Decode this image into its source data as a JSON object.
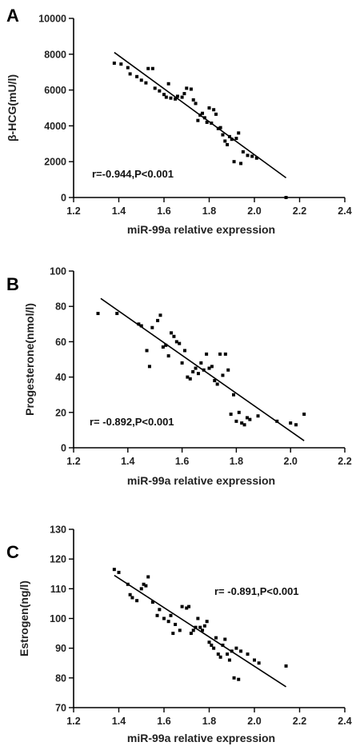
{
  "colors": {
    "points": "#000000",
    "axes": "#000000",
    "text": "#222222"
  },
  "chart_data": [
    {
      "type": "scatter",
      "panel": "A",
      "xlabel": "miR-99a relative expression",
      "ylabel": "β-HCG(mU/l)",
      "annotation": "r=-0.944,P<0.001",
      "xlim": [
        1.2,
        2.4
      ],
      "ylim": [
        0,
        10000
      ],
      "x_ticks": [
        1.2,
        1.4,
        1.6,
        1.8,
        2.0,
        2.2,
        2.4
      ],
      "x_tick_labels": [
        "1.2",
        "1.4",
        "1.6",
        "1.8",
        "2.0",
        "2.2",
        "2.4"
      ],
      "y_ticks": [
        0,
        2000,
        4000,
        6000,
        8000,
        10000
      ],
      "y_tick_labels": [
        "0",
        "2000",
        "4000",
        "6000",
        "8000",
        "10000"
      ],
      "grid": false,
      "fit_line": [
        [
          1.38,
          8100
        ],
        [
          2.14,
          1100
        ]
      ],
      "points": [
        [
          1.38,
          7500
        ],
        [
          1.41,
          7450
        ],
        [
          1.44,
          7250
        ],
        [
          1.45,
          6900
        ],
        [
          1.48,
          6750
        ],
        [
          1.5,
          6550
        ],
        [
          1.52,
          6400
        ],
        [
          1.53,
          7200
        ],
        [
          1.55,
          7200
        ],
        [
          1.56,
          6100
        ],
        [
          1.58,
          5950
        ],
        [
          1.6,
          5750
        ],
        [
          1.61,
          5600
        ],
        [
          1.62,
          6350
        ],
        [
          1.63,
          5550
        ],
        [
          1.65,
          5500
        ],
        [
          1.66,
          5650
        ],
        [
          1.68,
          5600
        ],
        [
          1.69,
          5800
        ],
        [
          1.7,
          6100
        ],
        [
          1.72,
          6050
        ],
        [
          1.73,
          5450
        ],
        [
          1.74,
          5250
        ],
        [
          1.75,
          4300
        ],
        [
          1.76,
          4600
        ],
        [
          1.77,
          4700
        ],
        [
          1.78,
          4450
        ],
        [
          1.79,
          4200
        ],
        [
          1.8,
          5000
        ],
        [
          1.81,
          4150
        ],
        [
          1.82,
          4900
        ],
        [
          1.83,
          4650
        ],
        [
          1.84,
          3850
        ],
        [
          1.85,
          3900
        ],
        [
          1.86,
          3500
        ],
        [
          1.87,
          3150
        ],
        [
          1.88,
          2950
        ],
        [
          1.89,
          3400
        ],
        [
          1.9,
          3250
        ],
        [
          1.91,
          2000
        ],
        [
          1.92,
          3300
        ],
        [
          1.93,
          3600
        ],
        [
          1.94,
          1900
        ],
        [
          1.95,
          2550
        ],
        [
          1.97,
          2350
        ],
        [
          1.99,
          2300
        ],
        [
          2.01,
          2200
        ],
        [
          2.14,
          0
        ]
      ]
    },
    {
      "type": "scatter",
      "panel": "B",
      "xlabel": "miR-99a relative expression",
      "ylabel": "Progesterone(nmol/l)",
      "annotation": "r= -0.892,P<0.001",
      "xlim": [
        1.2,
        2.2
      ],
      "ylim": [
        0,
        100
      ],
      "x_ticks": [
        1.2,
        1.4,
        1.6,
        1.8,
        2.0,
        2.2
      ],
      "x_tick_labels": [
        "1.2",
        "1.4",
        "1.6",
        "1.8",
        "2.0",
        "2.2"
      ],
      "y_ticks": [
        0,
        20,
        40,
        60,
        80,
        100
      ],
      "y_tick_labels": [
        "0",
        "20",
        "40",
        "60",
        "80",
        "100"
      ],
      "grid": false,
      "fit_line": [
        [
          1.3,
          84.5
        ],
        [
          2.05,
          4
        ]
      ],
      "points": [
        [
          1.29,
          76
        ],
        [
          1.36,
          76
        ],
        [
          1.44,
          70
        ],
        [
          1.45,
          69
        ],
        [
          1.47,
          55
        ],
        [
          1.48,
          46
        ],
        [
          1.49,
          68
        ],
        [
          1.51,
          72
        ],
        [
          1.52,
          75
        ],
        [
          1.53,
          57
        ],
        [
          1.54,
          58
        ],
        [
          1.55,
          52
        ],
        [
          1.56,
          65
        ],
        [
          1.57,
          63
        ],
        [
          1.58,
          60
        ],
        [
          1.59,
          59
        ],
        [
          1.6,
          48
        ],
        [
          1.61,
          55
        ],
        [
          1.62,
          40
        ],
        [
          1.63,
          39
        ],
        [
          1.64,
          43
        ],
        [
          1.65,
          45
        ],
        [
          1.66,
          42
        ],
        [
          1.67,
          48
        ],
        [
          1.68,
          44
        ],
        [
          1.69,
          53
        ],
        [
          1.7,
          45
        ],
        [
          1.71,
          46
        ],
        [
          1.72,
          38
        ],
        [
          1.73,
          36
        ],
        [
          1.74,
          53
        ],
        [
          1.75,
          41
        ],
        [
          1.76,
          53
        ],
        [
          1.77,
          44
        ],
        [
          1.78,
          19
        ],
        [
          1.79,
          30
        ],
        [
          1.8,
          15
        ],
        [
          1.81,
          20
        ],
        [
          1.82,
          14
        ],
        [
          1.83,
          13
        ],
        [
          1.84,
          17
        ],
        [
          1.85,
          16
        ],
        [
          1.88,
          18
        ],
        [
          1.95,
          15
        ],
        [
          2.0,
          14
        ],
        [
          2.02,
          13
        ],
        [
          2.05,
          19
        ]
      ]
    },
    {
      "type": "scatter",
      "panel": "C",
      "xlabel": "miR-99a relative expression",
      "ylabel": "Estrogen(ng/l)",
      "annotation": "r= -0.891,P<0.001",
      "xlim": [
        1.2,
        2.4
      ],
      "ylim": [
        70,
        130
      ],
      "x_ticks": [
        1.2,
        1.4,
        1.6,
        1.8,
        2.0,
        2.2,
        2.4
      ],
      "x_tick_labels": [
        "1.2",
        "1.4",
        "1.6",
        "1.8",
        "2.0",
        "2.2",
        "2.4"
      ],
      "y_ticks": [
        70,
        80,
        90,
        100,
        110,
        120,
        130
      ],
      "y_tick_labels": [
        "70",
        "80",
        "90",
        "100",
        "110",
        "120",
        "130"
      ],
      "grid": false,
      "fit_line": [
        [
          1.38,
          114.5
        ],
        [
          2.14,
          77
        ]
      ],
      "points": [
        [
          1.38,
          116.5
        ],
        [
          1.4,
          115.5
        ],
        [
          1.44,
          111.5
        ],
        [
          1.45,
          108
        ],
        [
          1.46,
          107
        ],
        [
          1.48,
          106
        ],
        [
          1.5,
          110
        ],
        [
          1.51,
          111.5
        ],
        [
          1.52,
          111
        ],
        [
          1.53,
          114
        ],
        [
          1.55,
          105.5
        ],
        [
          1.57,
          101
        ],
        [
          1.58,
          103
        ],
        [
          1.6,
          100
        ],
        [
          1.62,
          99
        ],
        [
          1.63,
          101
        ],
        [
          1.64,
          95
        ],
        [
          1.65,
          98
        ],
        [
          1.67,
          96
        ],
        [
          1.68,
          104
        ],
        [
          1.7,
          103.5
        ],
        [
          1.71,
          104
        ],
        [
          1.72,
          95
        ],
        [
          1.73,
          96
        ],
        [
          1.74,
          97
        ],
        [
          1.75,
          100
        ],
        [
          1.76,
          97
        ],
        [
          1.77,
          96
        ],
        [
          1.78,
          97.5
        ],
        [
          1.79,
          99
        ],
        [
          1.8,
          92
        ],
        [
          1.81,
          91
        ],
        [
          1.82,
          90
        ],
        [
          1.83,
          93.5
        ],
        [
          1.84,
          88
        ],
        [
          1.85,
          87
        ],
        [
          1.86,
          91
        ],
        [
          1.87,
          93
        ],
        [
          1.88,
          88
        ],
        [
          1.89,
          86
        ],
        [
          1.9,
          89
        ],
        [
          1.91,
          80
        ],
        [
          1.92,
          90
        ],
        [
          1.93,
          79.5
        ],
        [
          1.94,
          89
        ],
        [
          1.97,
          88
        ],
        [
          2.0,
          86
        ],
        [
          2.02,
          85
        ],
        [
          2.14,
          84
        ]
      ]
    }
  ]
}
